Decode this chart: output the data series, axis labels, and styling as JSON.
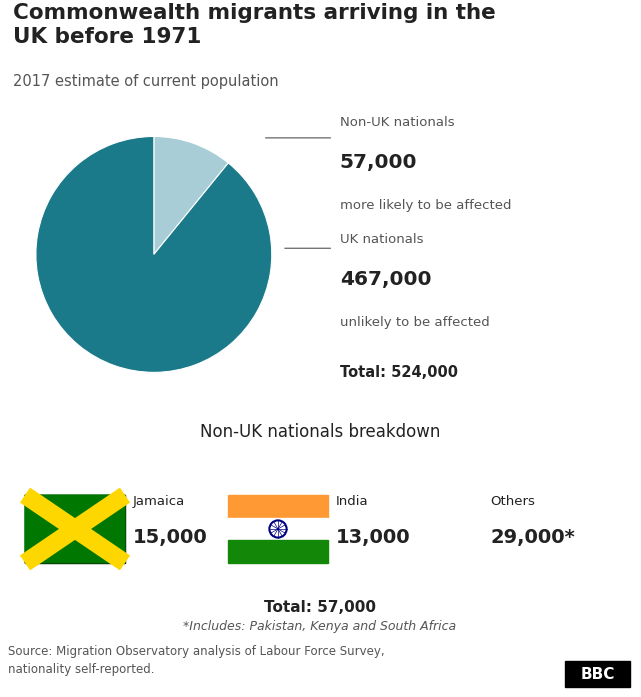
{
  "title": "Commonwealth migrants arriving in the\nUK before 1971",
  "subtitle": "2017 estimate of current population",
  "pie_values": [
    57000,
    467000
  ],
  "pie_colors": [
    "#a8cdd6",
    "#1a7a8a"
  ],
  "pie_labels": [
    "Non-UK nationals",
    "UK nationals"
  ],
  "pie_values_display": [
    "57,000",
    "467,000"
  ],
  "pie_subtexts": [
    "more likely to be affected",
    "unlikely to be affected"
  ],
  "pie_total": "Total: 524,000",
  "breakdown_title": "Non-UK nationals breakdown",
  "breakdown_bg": "#d6e4ec",
  "breakdown_items": [
    {
      "country": "Jamaica",
      "value": "15,000"
    },
    {
      "country": "India",
      "value": "13,000"
    },
    {
      "country": "Others",
      "value": "29,000*"
    }
  ],
  "breakdown_total": "Total: 57,000",
  "breakdown_footnote": "*Includes: Pakistan, Kenya and South Africa",
  "source": "Source: Migration Observatory analysis of Labour Force Survey,\nnationality self-reported.",
  "bg_color": "#ffffff",
  "text_color": "#222222",
  "separator_color": "#bbbbbb",
  "teal_color": "#1a7a8a",
  "light_blue_color": "#a8cdd6"
}
